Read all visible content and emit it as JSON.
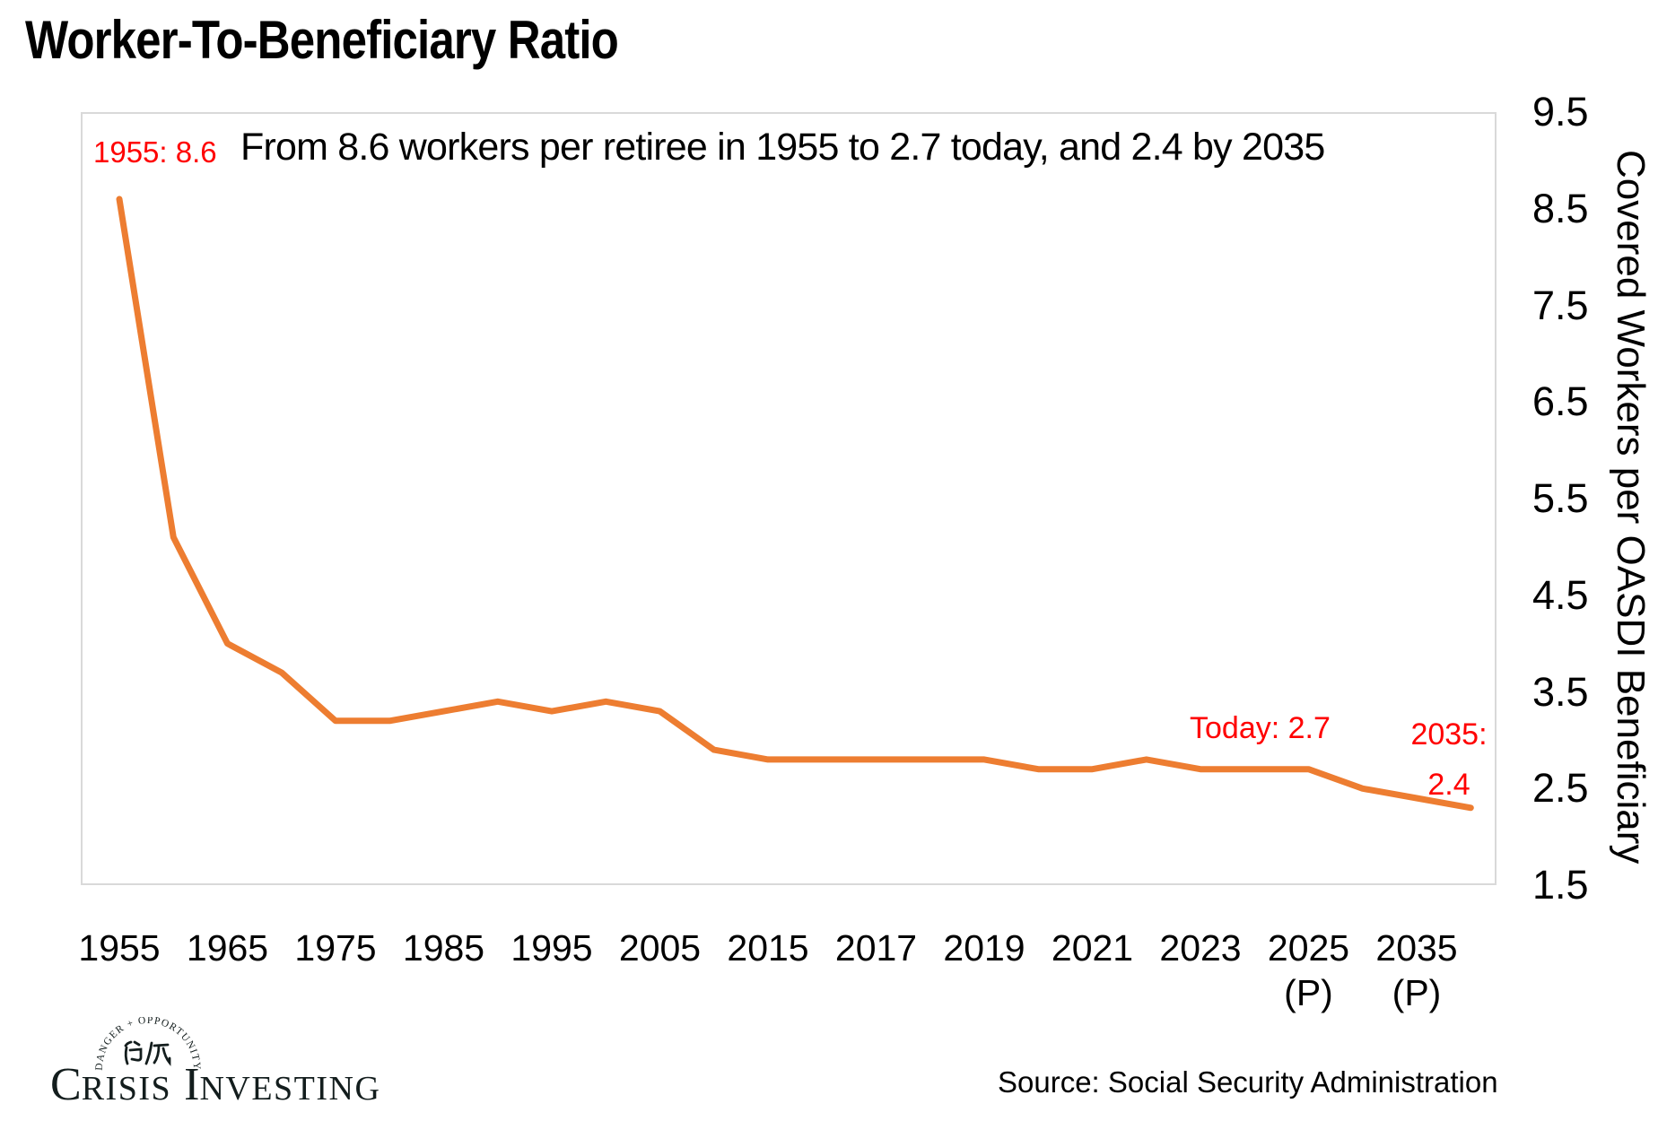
{
  "title": "Worker-To-Beneficiary Ratio",
  "annotations": {
    "start_point": "1955: 8.6",
    "headline": "From 8.6 workers per retiree in 1955 to 2.7 today, and 2.4 by 2035",
    "today": "Today: 2.7",
    "future_line1": "2035:",
    "future_line2": "2.4"
  },
  "chart_data": {
    "type": "line",
    "x": [
      1955,
      1960,
      1965,
      1970,
      1975,
      1980,
      1985,
      1990,
      1995,
      2000,
      2005,
      2010,
      2015,
      2016,
      2017,
      2018,
      2019,
      2020,
      2021,
      2022,
      2023,
      2024,
      2025,
      2030,
      2035,
      2040
    ],
    "values": [
      8.6,
      5.1,
      4.0,
      3.7,
      3.2,
      3.2,
      3.3,
      3.4,
      3.3,
      3.4,
      3.3,
      2.9,
      2.8,
      2.8,
      2.8,
      2.8,
      2.8,
      2.7,
      2.7,
      2.8,
      2.7,
      2.7,
      2.7,
      2.5,
      2.4,
      2.3
    ],
    "x_tick_labels": [
      "1955",
      "1965",
      "1975",
      "1985",
      "1995",
      "2005",
      "2015",
      "2017",
      "2019",
      "2021",
      "2023",
      "2025",
      "2035"
    ],
    "x_tick_sublabels": [
      "",
      "",
      "",
      "",
      "",
      "",
      "",
      "",
      "",
      "",
      "",
      "(P)",
      "(P)"
    ],
    "y_tick_labels": [
      "9.5",
      "8.5",
      "7.5",
      "6.5",
      "5.5",
      "4.5",
      "3.5",
      "2.5",
      "1.5"
    ],
    "y_ticks": [
      9.5,
      8.5,
      7.5,
      6.5,
      5.5,
      4.5,
      3.5,
      2.5,
      1.5
    ],
    "ylim": [
      1.5,
      9.5
    ],
    "ylabel": "Covered Workers per OASDI Beneficiary",
    "title": "Worker-To-Beneficiary Ratio",
    "grid": false,
    "legend_position": "none",
    "line_color": "#ED7D31",
    "annotation_color": "#FF0000",
    "plot_border_color": "#D9D9D9"
  },
  "footer": {
    "source": "Source: Social Security Administration",
    "logo": {
      "arc_text": "DANGER + OPPORTUNITY",
      "chinese_characters": "危机",
      "word1_lead": "C",
      "word1_rest": "RISIS",
      "word2_lead": "I",
      "word2_rest": "NVESTING"
    }
  }
}
